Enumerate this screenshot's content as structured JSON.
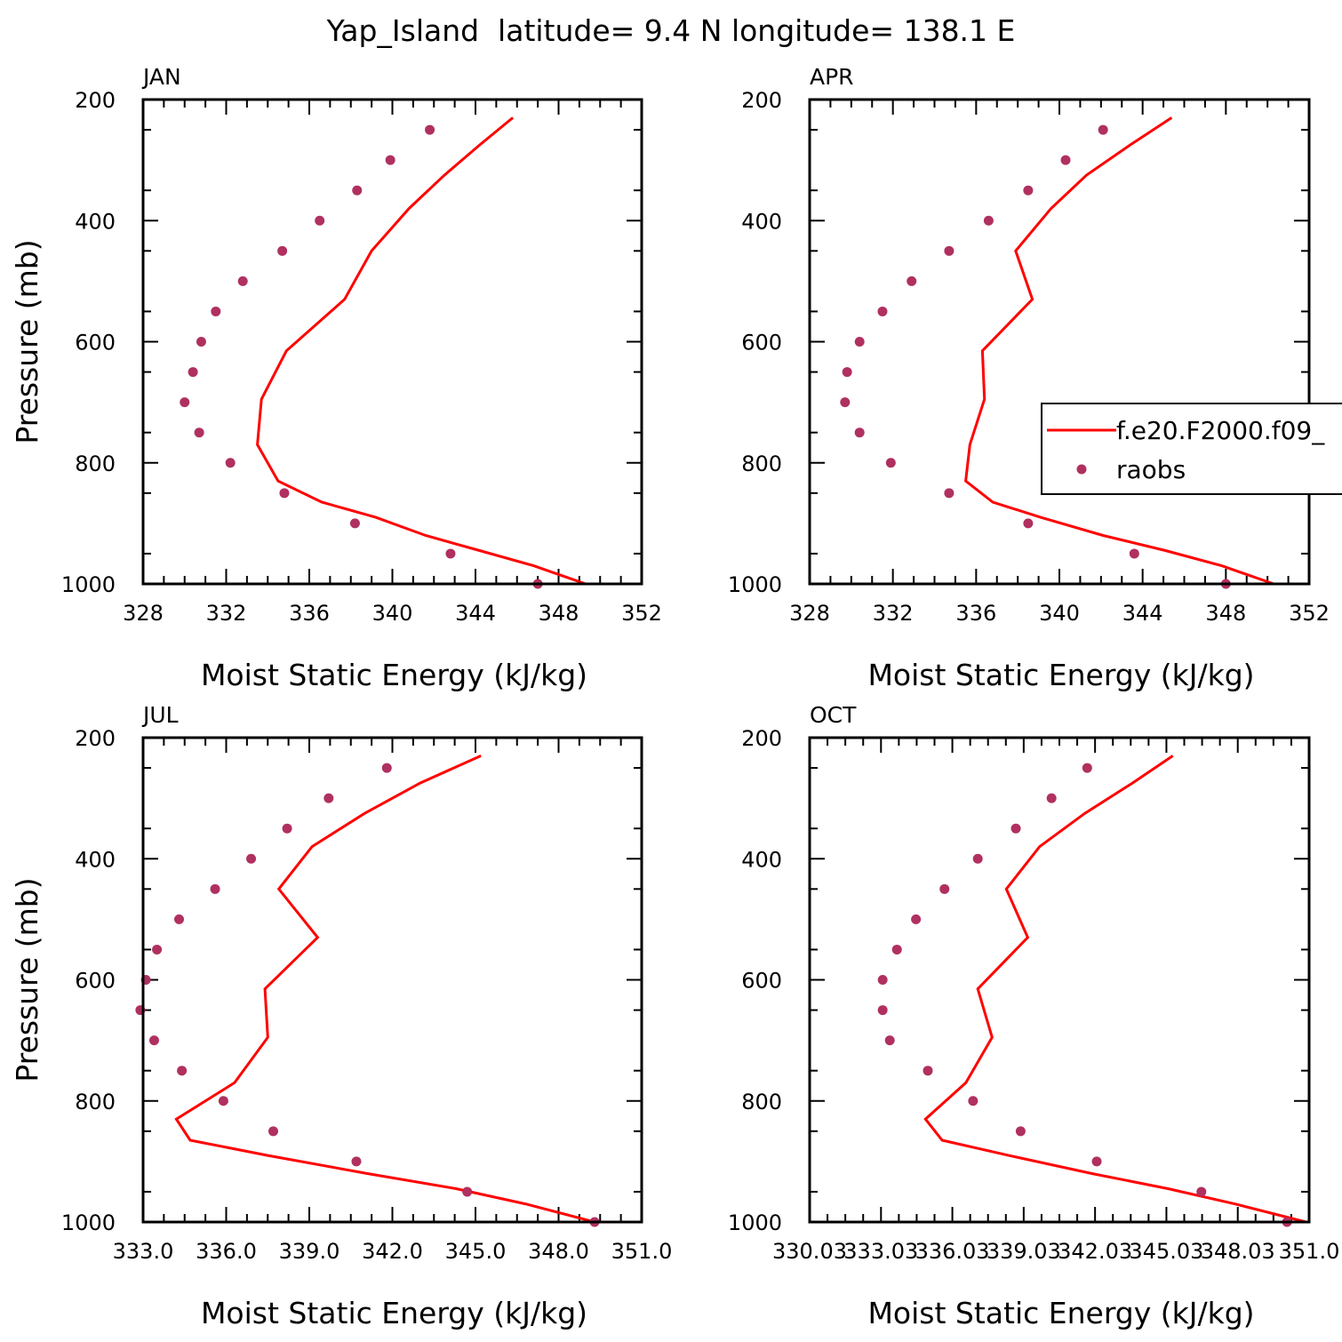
{
  "figure": {
    "title": "Yap_Island  latitude= 9.4 N longitude= 138.1 E"
  },
  "colors": {
    "model": "#ff0000",
    "obs": "#b03060",
    "axis": "#000000"
  },
  "legend": {
    "entries": [
      "f.e20.F2000.f09_",
      "raobs"
    ],
    "placement": "right of APR panel, partially clipped"
  },
  "chart_data": [
    {
      "type": "line",
      "panel_label": "JAN",
      "xlabel": "Moist Static Energy (kJ/kg)",
      "ylabel": "Pressure (mb)",
      "xlim": [
        328,
        352
      ],
      "ylim": [
        1000,
        200
      ],
      "xticks": [
        328,
        332,
        336,
        340,
        344,
        348,
        352
      ],
      "xtick_labels": [
        "328",
        "332",
        "336",
        "340",
        "344",
        "348",
        "352"
      ],
      "yticks": [
        200,
        400,
        600,
        800,
        1000
      ],
      "ytick_labels": [
        "200",
        "400",
        "600",
        "800",
        "1000"
      ],
      "grid": false,
      "series": [
        {
          "name": "f.e20.F2000.f09_",
          "kind": "line",
          "p": [
            230,
            275,
            325,
            380,
            450,
            530,
            615,
            695,
            770,
            830,
            865,
            890,
            920,
            945,
            970,
            1000
          ],
          "x": [
            345.8,
            344.2,
            342.5,
            340.8,
            339.0,
            337.7,
            334.9,
            333.7,
            333.5,
            334.5,
            336.6,
            339.2,
            341.6,
            344.2,
            346.8,
            349.3
          ]
        },
        {
          "name": "raobs",
          "kind": "scatter",
          "p": [
            250,
            300,
            350,
            400,
            450,
            500,
            550,
            600,
            650,
            700,
            750,
            800,
            850,
            900,
            950,
            1000
          ],
          "x": [
            341.8,
            339.9,
            338.3,
            336.5,
            334.7,
            332.8,
            331.5,
            330.8,
            330.4,
            330.0,
            330.7,
            332.2,
            334.8,
            338.2,
            342.8,
            347.0
          ]
        }
      ]
    },
    {
      "type": "line",
      "panel_label": "APR",
      "xlabel": "Moist Static Energy (kJ/kg)",
      "ylabel": "",
      "xlim": [
        328,
        352
      ],
      "ylim": [
        1000,
        200
      ],
      "xticks": [
        328,
        332,
        336,
        340,
        344,
        348,
        352
      ],
      "xtick_labels": [
        "328",
        "332",
        "336",
        "340",
        "344",
        "348",
        "352"
      ],
      "yticks": [
        200,
        400,
        600,
        800,
        1000
      ],
      "ytick_labels": [
        "200",
        "400",
        "600",
        "800",
        "1000"
      ],
      "grid": false,
      "series": [
        {
          "name": "f.e20.F2000.f09_",
          "kind": "line",
          "p": [
            230,
            275,
            325,
            380,
            450,
            530,
            615,
            695,
            770,
            830,
            865,
            890,
            920,
            945,
            970,
            1000
          ],
          "x": [
            345.4,
            343.4,
            341.3,
            339.6,
            337.9,
            338.7,
            336.3,
            336.4,
            335.7,
            335.5,
            336.8,
            339.1,
            342.1,
            345.1,
            347.8,
            350.3
          ]
        },
        {
          "name": "raobs",
          "kind": "scatter",
          "p": [
            250,
            300,
            350,
            400,
            450,
            500,
            550,
            600,
            650,
            700,
            750,
            800,
            850,
            900,
            950,
            1000
          ],
          "x": [
            342.1,
            340.3,
            338.5,
            336.6,
            334.7,
            332.9,
            331.5,
            330.4,
            329.8,
            329.7,
            330.4,
            331.9,
            334.7,
            338.5,
            343.6,
            348.0
          ]
        }
      ]
    },
    {
      "type": "line",
      "panel_label": "JUL",
      "xlabel": "Moist Static Energy (kJ/kg)",
      "ylabel": "Pressure (mb)",
      "xlim": [
        333,
        351
      ],
      "ylim": [
        1000,
        200
      ],
      "xticks": [
        333,
        336,
        339,
        342,
        345,
        348,
        351
      ],
      "xtick_labels": [
        "333.0",
        "336.0",
        "339.0",
        "342.0",
        "345.0",
        "348.0",
        "351.0"
      ],
      "yticks": [
        200,
        400,
        600,
        800,
        1000
      ],
      "ytick_labels": [
        "200",
        "400",
        "600",
        "800",
        "1000"
      ],
      "grid": false,
      "series": [
        {
          "name": "f.e20.F2000.f09_",
          "kind": "line",
          "p": [
            230,
            275,
            325,
            380,
            450,
            530,
            615,
            695,
            770,
            830,
            865,
            890,
            920,
            945,
            970,
            1000
          ],
          "x": [
            345.2,
            343.0,
            341.0,
            339.1,
            337.9,
            339.3,
            337.4,
            337.5,
            336.3,
            334.2,
            334.7,
            337.5,
            341.1,
            344.3,
            346.8,
            349.3
          ]
        },
        {
          "name": "raobs",
          "kind": "scatter",
          "p": [
            250,
            300,
            350,
            400,
            450,
            500,
            550,
            600,
            650,
            700,
            750,
            800,
            850,
            900,
            950,
            1000
          ],
          "x": [
            341.8,
            339.7,
            338.2,
            336.9,
            335.6,
            334.3,
            333.5,
            333.1,
            332.9,
            333.4,
            334.4,
            335.9,
            337.7,
            340.7,
            344.7,
            349.3
          ]
        }
      ]
    },
    {
      "type": "line",
      "panel_label": "OCT",
      "xlabel": "Moist Static Energy (kJ/kg)",
      "ylabel": "",
      "xlim": [
        330.03,
        351.03
      ],
      "ylim": [
        1000,
        200
      ],
      "xticks": [
        330.03,
        333.03,
        336.03,
        339.03,
        342.03,
        345.03,
        348.03,
        351.03
      ],
      "xtick_labels": [
        "330.03",
        "333.03",
        "336.03",
        "339.03",
        "342.03",
        "345.03",
        "348.03",
        "351.0"
      ],
      "yticks": [
        200,
        400,
        600,
        800,
        1000
      ],
      "ytick_labels": [
        "200",
        "400",
        "600",
        "800",
        "1000"
      ],
      "grid": false,
      "series": [
        {
          "name": "f.e20.F2000.f09_",
          "kind": "line",
          "p": [
            230,
            275,
            325,
            380,
            450,
            530,
            615,
            695,
            770,
            830,
            865,
            890,
            920,
            945,
            970,
            1000
          ],
          "x": [
            345.3,
            343.6,
            341.6,
            339.7,
            338.3,
            339.2,
            337.1,
            337.7,
            336.6,
            334.9,
            335.6,
            338.4,
            341.9,
            345.1,
            347.9,
            350.9
          ]
        },
        {
          "name": "raobs",
          "kind": "scatter",
          "p": [
            250,
            300,
            350,
            400,
            450,
            500,
            550,
            600,
            650,
            700,
            750,
            800,
            850,
            900,
            950,
            1000
          ],
          "x": [
            341.7,
            340.2,
            338.7,
            337.1,
            335.7,
            334.5,
            333.7,
            333.1,
            333.1,
            333.4,
            335.0,
            336.9,
            338.9,
            342.1,
            346.5,
            350.1
          ]
        }
      ]
    }
  ]
}
